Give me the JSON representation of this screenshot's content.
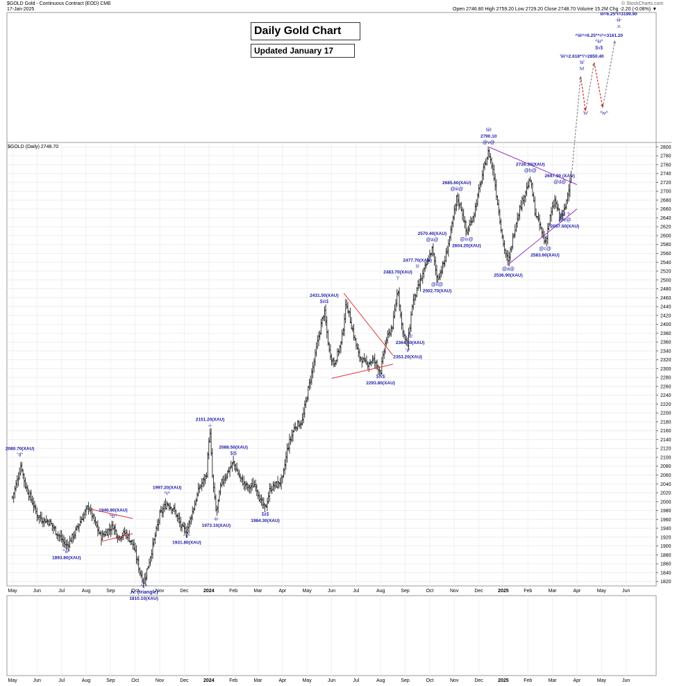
{
  "header": {
    "symbol_line": "$GOLD Gold - Continuous Contract (EOD) CME",
    "date": "17-Jan-2025",
    "ohlc": "Open 2746.80  High 2759.20  Low 2729.20  Close 2748.70  Volume 15.2M  Chg -2.20 (-0.08%) ▼",
    "watermark": "© StockCharts.com",
    "panel_label": "$GOLD (Daily) 2748.70"
  },
  "title": "Daily Gold Chart",
  "subtitle": "Updated January 17",
  "chart_data": {
    "type": "line",
    "subtype": "ohlc-bars",
    "title": "Daily Gold Chart",
    "ylim": [
      1810,
      2810
    ],
    "y_ticks": [
      1820,
      1840,
      1860,
      1880,
      1900,
      1920,
      1940,
      1960,
      1980,
      2000,
      2020,
      2040,
      2060,
      2080,
      2100,
      2120,
      2140,
      2160,
      2180,
      2200,
      2220,
      2240,
      2260,
      2280,
      2300,
      2320,
      2340,
      2360,
      2380,
      2400,
      2420,
      2440,
      2460,
      2480,
      2500,
      2520,
      2540,
      2560,
      2580,
      2600,
      2620,
      2640,
      2660,
      2680,
      2700,
      2720,
      2740,
      2760,
      2780,
      2800
    ],
    "x_ticks": [
      "May",
      "Jun",
      "Jul",
      "Aug",
      "Sep",
      "Oct",
      "Nov",
      "Dec",
      "2024",
      "Feb",
      "Mar",
      "Apr",
      "May",
      "Jun",
      "Jul",
      "Aug",
      "Sep",
      "Oct",
      "Nov",
      "Dec",
      "2025",
      "Feb",
      "Mar",
      "Apr",
      "May",
      "Jun"
    ],
    "x_range_months": [
      0,
      26
    ],
    "price_path": [
      [
        0,
        2010
      ],
      [
        0.1,
        2030
      ],
      [
        0.25,
        2060
      ],
      [
        0.35,
        2085
      ],
      [
        0.5,
        2040
      ],
      [
        0.8,
        2000
      ],
      [
        1.0,
        1970
      ],
      [
        1.2,
        1960
      ],
      [
        1.5,
        1955
      ],
      [
        1.8,
        1930
      ],
      [
        2.2,
        1900
      ],
      [
        2.5,
        1925
      ],
      [
        2.8,
        1960
      ],
      [
        3.1,
        1990
      ],
      [
        3.3,
        1960
      ],
      [
        3.6,
        1920
      ],
      [
        3.9,
        1935
      ],
      [
        4.1,
        1946
      ],
      [
        4.3,
        1920
      ],
      [
        4.6,
        1930
      ],
      [
        4.9,
        1905
      ],
      [
        5.2,
        1840
      ],
      [
        5.35,
        1818
      ],
      [
        5.5,
        1850
      ],
      [
        5.8,
        1920
      ],
      [
        6.0,
        1970
      ],
      [
        6.3,
        1997
      ],
      [
        6.6,
        1980
      ],
      [
        6.9,
        1940
      ],
      [
        7.1,
        1935
      ],
      [
        7.4,
        1990
      ],
      [
        7.6,
        2030
      ],
      [
        7.9,
        2060
      ],
      [
        8.0,
        2140
      ],
      [
        8.05,
        2151
      ],
      [
        8.15,
        2050
      ],
      [
        8.3,
        1973
      ],
      [
        8.5,
        2040
      ],
      [
        8.8,
        2070
      ],
      [
        9.0,
        2088
      ],
      [
        9.3,
        2050
      ],
      [
        9.6,
        2030
      ],
      [
        9.9,
        2040
      ],
      [
        10.1,
        2000
      ],
      [
        10.3,
        1984
      ],
      [
        10.5,
        2030
      ],
      [
        10.8,
        2040
      ],
      [
        11.0,
        2050
      ],
      [
        11.2,
        2120
      ],
      [
        11.5,
        2170
      ],
      [
        11.8,
        2180
      ],
      [
        12.0,
        2240
      ],
      [
        12.3,
        2320
      ],
      [
        12.5,
        2380
      ],
      [
        12.7,
        2431
      ],
      [
        12.9,
        2340
      ],
      [
        13.1,
        2310
      ],
      [
        13.4,
        2360
      ],
      [
        13.6,
        2450
      ],
      [
        13.8,
        2400
      ],
      [
        14.1,
        2330
      ],
      [
        14.4,
        2310
      ],
      [
        14.7,
        2320
      ],
      [
        15.0,
        2294
      ],
      [
        15.2,
        2360
      ],
      [
        15.5,
        2400
      ],
      [
        15.7,
        2483
      ],
      [
        15.85,
        2400
      ],
      [
        16.0,
        2364
      ],
      [
        16.1,
        2353
      ],
      [
        16.3,
        2450
      ],
      [
        16.5,
        2478
      ],
      [
        16.7,
        2510
      ],
      [
        16.9,
        2540
      ],
      [
        17.1,
        2570
      ],
      [
        17.3,
        2502
      ],
      [
        17.6,
        2540
      ],
      [
        17.9,
        2620
      ],
      [
        18.1,
        2685
      ],
      [
        18.3,
        2660
      ],
      [
        18.5,
        2604
      ],
      [
        18.8,
        2650
      ],
      [
        19.0,
        2700
      ],
      [
        19.2,
        2750
      ],
      [
        19.4,
        2790
      ],
      [
        19.6,
        2740
      ],
      [
        19.8,
        2660
      ],
      [
        20.0,
        2580
      ],
      [
        20.2,
        2537
      ],
      [
        20.4,
        2600
      ],
      [
        20.6,
        2650
      ],
      [
        20.9,
        2700
      ],
      [
        21.1,
        2726
      ],
      [
        21.3,
        2650
      ],
      [
        21.5,
        2620
      ],
      [
        21.7,
        2583
      ],
      [
        21.9,
        2640
      ],
      [
        22.1,
        2680
      ],
      [
        22.3,
        2640
      ],
      [
        22.5,
        2657
      ],
      [
        22.7,
        2720
      ],
      [
        22.8,
        2749
      ]
    ],
    "labels": [
      {
        "text": "2080.70(XAU)",
        "sub": "\"d\"",
        "m": 0.3,
        "y": 2085,
        "pos": "above"
      },
      {
        "text": "1893.80(XAU)",
        "sub": "^a^",
        "m": 2.2,
        "y": 1900,
        "pos": "below"
      },
      {
        "text": "1946.80(XAU)",
        "sub": "^b^",
        "m": 4.1,
        "y": 1946,
        "pos": "above"
      },
      {
        "text": "1810.10(XAU)",
        "sub": ".iv. (triangle)",
        "sub2": "^c^",
        "m": 5.35,
        "y": 1818,
        "pos": "below"
      },
      {
        "text": "1997.20(XAU)",
        "sub": "^i^",
        "m": 6.3,
        "y": 1997,
        "pos": "above"
      },
      {
        "text": "1931.80(XAU)",
        "sub": "^ii^",
        "m": 7.1,
        "y": 1935,
        "pos": "below"
      },
      {
        "text": "2151.20(XAU)",
        "sub": "-i-",
        "m": 8.05,
        "y": 2151,
        "pos": "above"
      },
      {
        "text": "1973.10(XAU)",
        "sub": "-ii-",
        "m": 8.3,
        "y": 1973,
        "pos": "below"
      },
      {
        "text": "2088.50(XAU)",
        "sub": "$i$",
        "m": 9.0,
        "y": 2088,
        "pos": "above"
      },
      {
        "text": "1984.30(XAU)",
        "sub": "$ii$",
        "m": 10.3,
        "y": 1984,
        "pos": "below"
      },
      {
        "text": "2431.50(XAU)",
        "sub": "$iii$",
        "m": 12.7,
        "y": 2431,
        "pos": "above"
      },
      {
        "text": "2293.80(XAU)",
        "sub": "$iv$",
        "m": 15.0,
        "y": 2294,
        "pos": "below"
      },
      {
        "text": "2483.70(XAU)",
        "sub": "'i'",
        "m": 15.7,
        "y": 2483,
        "pos": "above"
      },
      {
        "text": "2353.20(XAU)",
        "sub": "'ii'",
        "m": 16.1,
        "y": 2353,
        "pos": "below"
      },
      {
        "text": "2364.40(XAU)",
        "sub": "!ii!",
        "m": 16.2,
        "y": 2385,
        "pos": "below"
      },
      {
        "text": "2477.70(XAU)",
        "sub": "!i!",
        "m": 16.5,
        "y": 2510,
        "pos": "above"
      },
      {
        "text": "2570.40(XAU)",
        "sub": "@a@",
        "m": 17.1,
        "y": 2570,
        "pos": "above"
      },
      {
        "text": "2502.70(XAU)",
        "sub": "@ii@",
        "m": 17.3,
        "y": 2502,
        "pos": "below"
      },
      {
        "text": "2685.60(XAU)",
        "sub": "@iii@",
        "m": 18.1,
        "y": 2685,
        "pos": "above"
      },
      {
        "text": "2604.20(XAU)",
        "sub": "@iv@",
        "m": 18.5,
        "y": 2604,
        "pos": "below"
      },
      {
        "text": "2790.10",
        "sub": "@v@",
        "sub2": "!iii!",
        "m": 19.4,
        "y": 2790,
        "pos": "above"
      },
      {
        "text": "2536.90(XAU)",
        "sub": "@a@",
        "m": 20.2,
        "y": 2537,
        "pos": "below"
      },
      {
        "text": "2726.30(XAU)",
        "sub": "@b@",
        "m": 21.1,
        "y": 2726,
        "pos": "above"
      },
      {
        "text": "2583.60(XAU)",
        "sub": "@c@",
        "m": 21.7,
        "y": 2583,
        "pos": "below"
      },
      {
        "text": "2697.90 (XAU)",
        "sub": "@d@",
        "m": 22.3,
        "y": 2700,
        "pos": "above"
      },
      {
        "text": "2657.50(XAU)",
        "sub": "@e@",
        "sub2": "!iv! ?",
        "m": 22.5,
        "y": 2657,
        "pos": "below"
      }
    ],
    "projection_labels": [
      {
        "text": "'iii'=2.618*'i'=2850.40",
        "sub": "'iii'",
        "sub2": "!v!",
        "m": 23.2,
        "yraw": "top"
      },
      {
        "text": "'iv'",
        "m": 23.3,
        "yraw": "mid"
      },
      {
        "text": "^iii^=6.25*^i^=3161.20",
        "sub": "^iii^",
        "sub2": "$v$",
        "m": 24.0,
        "yraw": "top2"
      },
      {
        "text": "^iv^",
        "m": 24.2,
        "yraw": "mid"
      },
      {
        "text": "iii=6.25*i=3199.90",
        "sub": "-iii-",
        "sub2": ".v.",
        "m": 24.9,
        "yraw": "top3"
      }
    ],
    "trendlines": [
      {
        "color": "#e03030",
        "pts": [
          [
            3.2,
            1983
          ],
          [
            4.9,
            1962
          ]
        ]
      },
      {
        "color": "#e03030",
        "pts": [
          [
            3.6,
            1910
          ],
          [
            4.9,
            1928
          ]
        ]
      },
      {
        "color": "#e03030",
        "pts": [
          [
            13.5,
            2470
          ],
          [
            15.5,
            2330
          ]
        ]
      },
      {
        "color": "#e03030",
        "pts": [
          [
            13.0,
            2278
          ],
          [
            15.5,
            2310
          ]
        ]
      },
      {
        "color": "#9933cc",
        "pts": [
          [
            19.4,
            2800
          ],
          [
            23.0,
            2715
          ]
        ]
      },
      {
        "color": "#9933cc",
        "pts": [
          [
            20.2,
            2535
          ],
          [
            23.0,
            2660
          ]
        ]
      }
    ]
  }
}
